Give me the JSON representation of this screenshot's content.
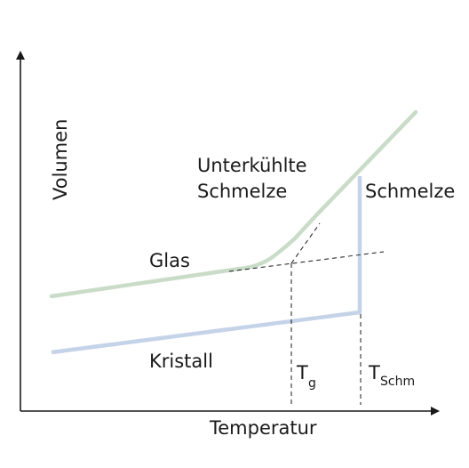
{
  "diagram": {
    "axes": {
      "y_label": "Volumen",
      "x_label": "Temperatur"
    },
    "regions": {
      "supercooled_line1": "Unterkühlte",
      "supercooled_line2": "Schmelze",
      "melt": "Schmelze",
      "glass": "Glas",
      "crystal": "Kristall"
    },
    "markers": {
      "tg_main": "T",
      "tg_sub": "g",
      "tm_main": "T",
      "tm_sub": "Schm"
    },
    "colors": {
      "glass_curve": "#c9dcc7",
      "crystal_curve": "#c4d3e8",
      "axis": "#1a1a1a",
      "dashed": "#1a1a1a"
    }
  }
}
